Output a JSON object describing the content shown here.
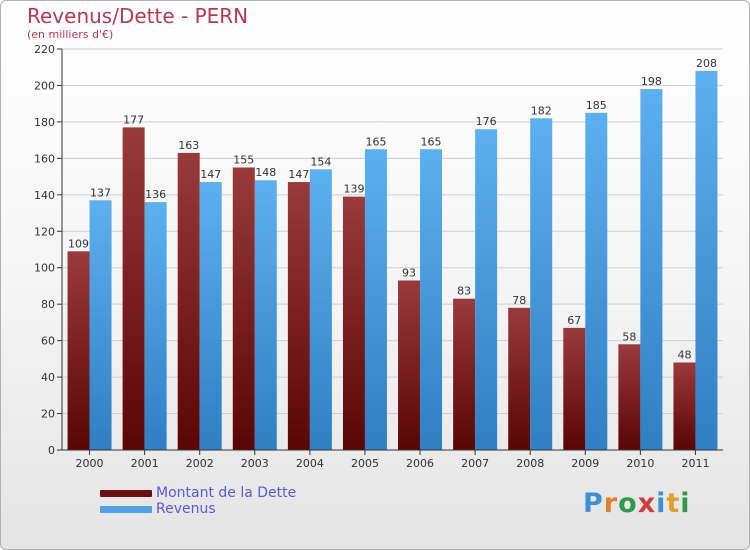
{
  "header": {
    "title": "Revenus/Dette - PERN",
    "subtitle": "(en milliers d'€)"
  },
  "legend": {
    "items": [
      {
        "label": "Montant de la Dette",
        "color": "#6b0f12"
      },
      {
        "label": "Revenus",
        "color": "#4fa3e6"
      }
    ]
  },
  "logo": {
    "letters": [
      {
        "char": "P",
        "color": "#3d8fd6"
      },
      {
        "char": "r",
        "color": "#e0802a"
      },
      {
        "char": "o",
        "color": "#2e9a4a"
      },
      {
        "char": "x",
        "color": "#d63a3a"
      },
      {
        "char": "i",
        "color": "#3d8fd6"
      },
      {
        "char": "t",
        "color": "#e0a02a"
      },
      {
        "char": "i",
        "color": "#2e9a4a"
      }
    ]
  },
  "chart_data": {
    "type": "bar",
    "title": "Revenus/Dette - PERN",
    "subtitle": "(en milliers d'€)",
    "categories": [
      "2000",
      "2001",
      "2002",
      "2003",
      "2004",
      "2005",
      "2006",
      "2007",
      "2008",
      "2009",
      "2010",
      "2011"
    ],
    "series": [
      {
        "name": "Montant de la Dette",
        "color": "#6b0f12",
        "values": [
          109,
          177,
          163,
          155,
          147,
          139,
          93,
          83,
          78,
          67,
          58,
          48
        ]
      },
      {
        "name": "Revenus",
        "color": "#4fa3e6",
        "values": [
          137,
          136,
          147,
          148,
          154,
          165,
          165,
          176,
          182,
          185,
          198,
          208
        ]
      }
    ],
    "yticks": [
      0,
      20,
      40,
      60,
      80,
      100,
      120,
      140,
      160,
      180,
      200,
      220
    ],
    "ylim": [
      0,
      220
    ],
    "grid": true,
    "legend_position": "bottom-left"
  }
}
